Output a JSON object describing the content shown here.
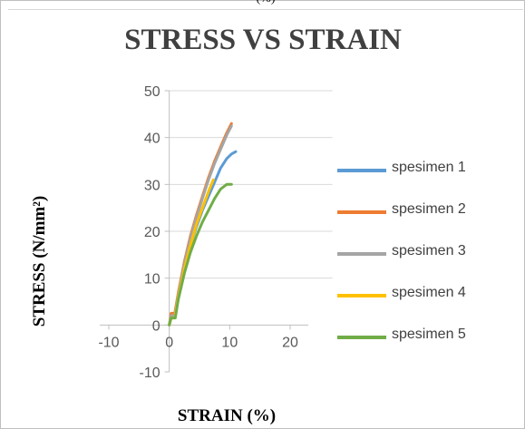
{
  "page": {
    "top_label": "(%)"
  },
  "chart_data": {
    "type": "line",
    "title": "STRESS VS STRAIN",
    "xlabel": "STRAIN (%)",
    "ylabel": "STRESS (N/mm²)",
    "xlim": [
      -10,
      20
    ],
    "ylim": [
      -10,
      50
    ],
    "x_ticks": [
      "-10",
      "0",
      "10",
      "20"
    ],
    "y_ticks": [
      "-10",
      "0",
      "10",
      "20",
      "30",
      "40",
      "50"
    ],
    "grid": "horizontal",
    "legend_position": "right",
    "series": [
      {
        "name": "spesimen 1",
        "color": "#5B9BD5",
        "points": [
          [
            0,
            0
          ],
          [
            0.3,
            2
          ],
          [
            0.9,
            2
          ],
          [
            1.5,
            6
          ],
          [
            2.5,
            12
          ],
          [
            3.5,
            17
          ],
          [
            4.5,
            21
          ],
          [
            5.5,
            24.5
          ],
          [
            6.5,
            27.5
          ],
          [
            7.5,
            30.5
          ],
          [
            8.5,
            33.5
          ],
          [
            9.5,
            35.5
          ],
          [
            10.3,
            36.5
          ],
          [
            11,
            37
          ]
        ]
      },
      {
        "name": "spesimen 2",
        "color": "#ED7D31",
        "points": [
          [
            0,
            0
          ],
          [
            0.3,
            2.5
          ],
          [
            0.9,
            2.5
          ],
          [
            1.5,
            7
          ],
          [
            2.5,
            13.5
          ],
          [
            3.5,
            19
          ],
          [
            4.5,
            23.5
          ],
          [
            5.5,
            27.5
          ],
          [
            6.5,
            31.5
          ],
          [
            7.5,
            35
          ],
          [
            8.5,
            38
          ],
          [
            9.5,
            41
          ],
          [
            10.3,
            43
          ]
        ]
      },
      {
        "name": "spesimen 3",
        "color": "#A5A5A5",
        "points": [
          [
            0,
            0
          ],
          [
            0.3,
            2
          ],
          [
            0.9,
            2
          ],
          [
            1.5,
            6.5
          ],
          [
            2.5,
            13
          ],
          [
            3.5,
            18.5
          ],
          [
            4.5,
            23
          ],
          [
            5.5,
            27
          ],
          [
            6.5,
            31
          ],
          [
            7.5,
            34.5
          ],
          [
            8.5,
            37.5
          ],
          [
            9.5,
            40.5
          ],
          [
            10.3,
            42.5
          ]
        ]
      },
      {
        "name": "spesimen 4",
        "color": "#FFC000",
        "points": [
          [
            0,
            0
          ],
          [
            0.3,
            1.5
          ],
          [
            0.9,
            1.5
          ],
          [
            1.5,
            6
          ],
          [
            2.5,
            12
          ],
          [
            3.5,
            17
          ],
          [
            4.5,
            21.5
          ],
          [
            5.5,
            25
          ],
          [
            6.5,
            28.5
          ],
          [
            7.3,
            31
          ]
        ]
      },
      {
        "name": "spesimen 5",
        "color": "#70AD47",
        "points": [
          [
            0,
            0
          ],
          [
            0.3,
            1.5
          ],
          [
            1,
            1.5
          ],
          [
            1.5,
            5.5
          ],
          [
            2.5,
            11
          ],
          [
            3.5,
            15.5
          ],
          [
            4.5,
            19
          ],
          [
            5.5,
            22
          ],
          [
            6.5,
            24.5
          ],
          [
            7.5,
            27
          ],
          [
            8.5,
            29
          ],
          [
            9.5,
            30
          ],
          [
            10.3,
            30
          ]
        ]
      }
    ]
  }
}
